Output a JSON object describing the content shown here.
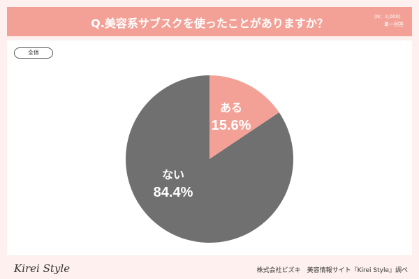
{
  "header": {
    "title": "Q.美容系サブスクを使ったことがありますか？",
    "n_label": "（N：2,000）",
    "answer_note": "単一回答",
    "bg_color": "#f3a197"
  },
  "filter_label": "全体",
  "chart_data": {
    "type": "pie",
    "slices": [
      {
        "label": "ある",
        "value": 15.6,
        "display": "15.6%",
        "color": "#f3a197"
      },
      {
        "label": "ない",
        "value": 84.4,
        "display": "84.4%",
        "color": "#707070"
      }
    ],
    "start_angle_deg": 0,
    "direction": "clockwise"
  },
  "footer": {
    "logo": "Kirei Style",
    "credit": "株式会社ビズキ　美容情報サイト『Kirei Style』調べ"
  }
}
